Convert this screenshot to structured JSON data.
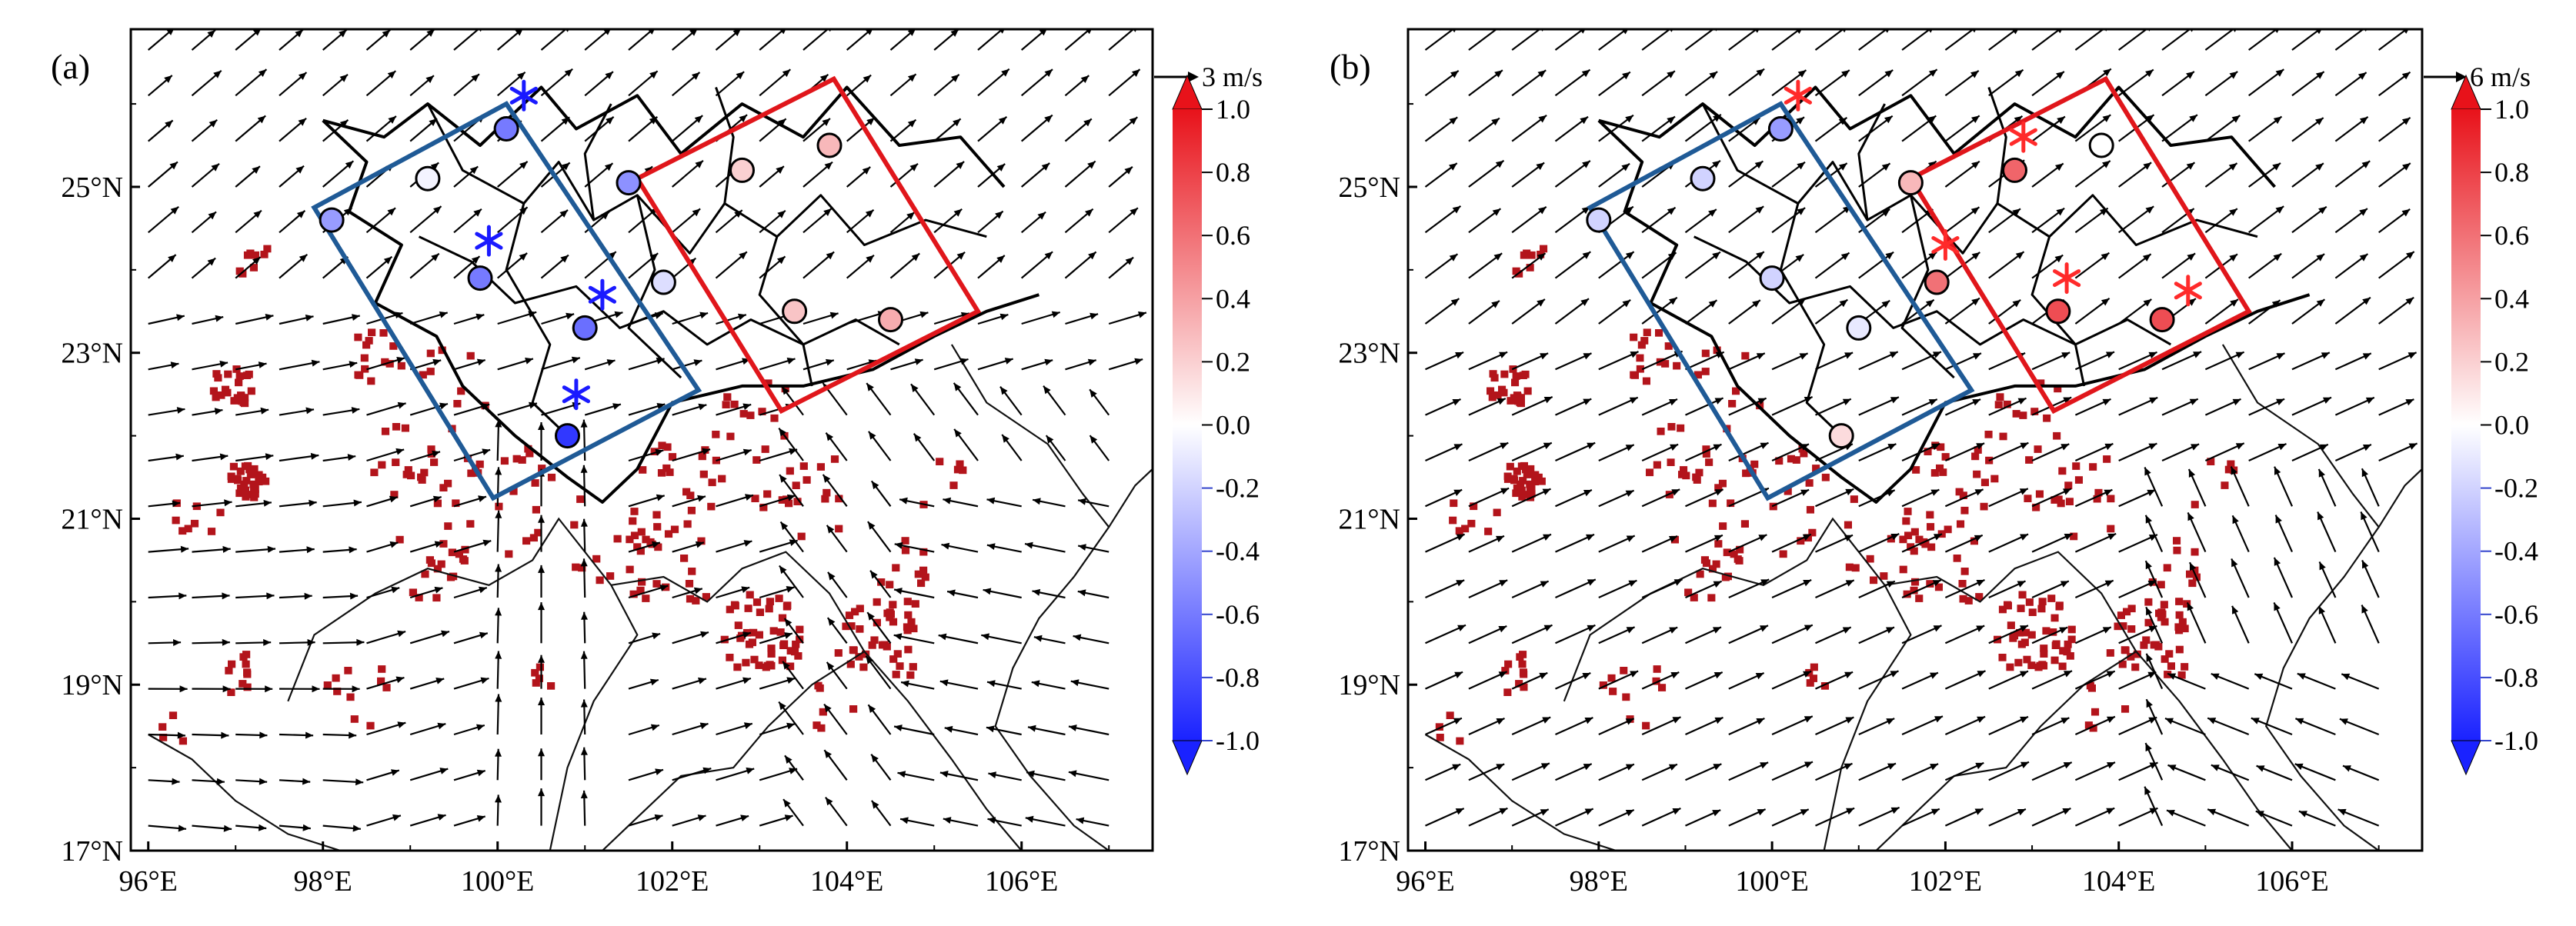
{
  "figure": {
    "colorbar_ticks": [
      "1.0",
      "0.8",
      "0.6",
      "0.4",
      "0.2",
      "0.0",
      "-0.2",
      "-0.4",
      "-0.6",
      "-0.8",
      "-1.0"
    ],
    "x_tick_labels": [
      "96°E",
      "98°E",
      "100°E",
      "102°E",
      "104°E",
      "106°E"
    ],
    "y_tick_labels": [
      "17°N",
      "19°N",
      "21°N",
      "23°N",
      "25°N"
    ],
    "colors": {
      "blue_box": "#1f5a96",
      "red_box": "#e0161b",
      "pixel_red": "#b3141b",
      "asterisk_blue": "#1a1aff",
      "asterisk_red": "#ff2a2a",
      "colorbar_top": "#e8121a",
      "colorbar_mid": "#ffffff",
      "colorbar_bottom": "#1a22ff"
    },
    "panels": [
      {
        "label": "(a)",
        "ref_vector": "3 m/s",
        "wind_regime": "convergent southerly flow",
        "stations": [
          {
            "lon": 98.1,
            "lat": 24.6,
            "value": -0.45
          },
          {
            "lon": 99.2,
            "lat": 25.1,
            "value": -0.05
          },
          {
            "lon": 100.1,
            "lat": 25.7,
            "value": -0.6
          },
          {
            "lon": 99.8,
            "lat": 23.9,
            "value": -0.6
          },
          {
            "lon": 101.5,
            "lat": 25.05,
            "value": -0.5
          },
          {
            "lon": 101.0,
            "lat": 23.3,
            "value": -0.65
          },
          {
            "lon": 100.8,
            "lat": 22.0,
            "value": -0.9
          },
          {
            "lon": 101.9,
            "lat": 23.85,
            "value": -0.15
          },
          {
            "lon": 102.8,
            "lat": 25.2,
            "value": 0.2
          },
          {
            "lon": 103.8,
            "lat": 25.5,
            "value": 0.3
          },
          {
            "lon": 103.4,
            "lat": 23.5,
            "value": 0.25
          },
          {
            "lon": 104.5,
            "lat": 23.4,
            "value": 0.35
          }
        ],
        "asterisks": [
          {
            "lon": 100.3,
            "lat": 26.1,
            "color": "blue"
          },
          {
            "lon": 99.9,
            "lat": 24.35,
            "color": "blue"
          },
          {
            "lon": 101.2,
            "lat": 23.7,
            "color": "blue"
          },
          {
            "lon": 100.9,
            "lat": 22.5,
            "color": "blue"
          }
        ]
      },
      {
        "label": "(b)",
        "ref_vector": "6 m/s",
        "wind_regime": "uniform south-westerly flow",
        "stations": [
          {
            "lon": 98.0,
            "lat": 24.6,
            "value": -0.2
          },
          {
            "lon": 99.2,
            "lat": 25.1,
            "value": -0.2
          },
          {
            "lon": 100.1,
            "lat": 25.7,
            "value": -0.45
          },
          {
            "lon": 100.0,
            "lat": 23.9,
            "value": -0.2
          },
          {
            "lon": 101.0,
            "lat": 23.3,
            "value": -0.1
          },
          {
            "lon": 100.8,
            "lat": 22.0,
            "value": 0.15
          },
          {
            "lon": 101.6,
            "lat": 25.05,
            "value": 0.3
          },
          {
            "lon": 101.9,
            "lat": 23.85,
            "value": 0.6
          },
          {
            "lon": 102.8,
            "lat": 25.2,
            "value": 0.65
          },
          {
            "lon": 103.8,
            "lat": 25.5,
            "value": 0.0
          },
          {
            "lon": 103.3,
            "lat": 23.5,
            "value": 0.75
          },
          {
            "lon": 104.5,
            "lat": 23.4,
            "value": 0.75
          }
        ],
        "asterisks": [
          {
            "lon": 100.3,
            "lat": 26.1,
            "color": "red"
          },
          {
            "lon": 102.9,
            "lat": 25.6,
            "color": "red"
          },
          {
            "lon": 102.0,
            "lat": 24.3,
            "color": "red"
          },
          {
            "lon": 103.4,
            "lat": 23.9,
            "color": "red"
          },
          {
            "lon": 104.8,
            "lat": 23.75,
            "color": "red"
          }
        ]
      }
    ]
  }
}
